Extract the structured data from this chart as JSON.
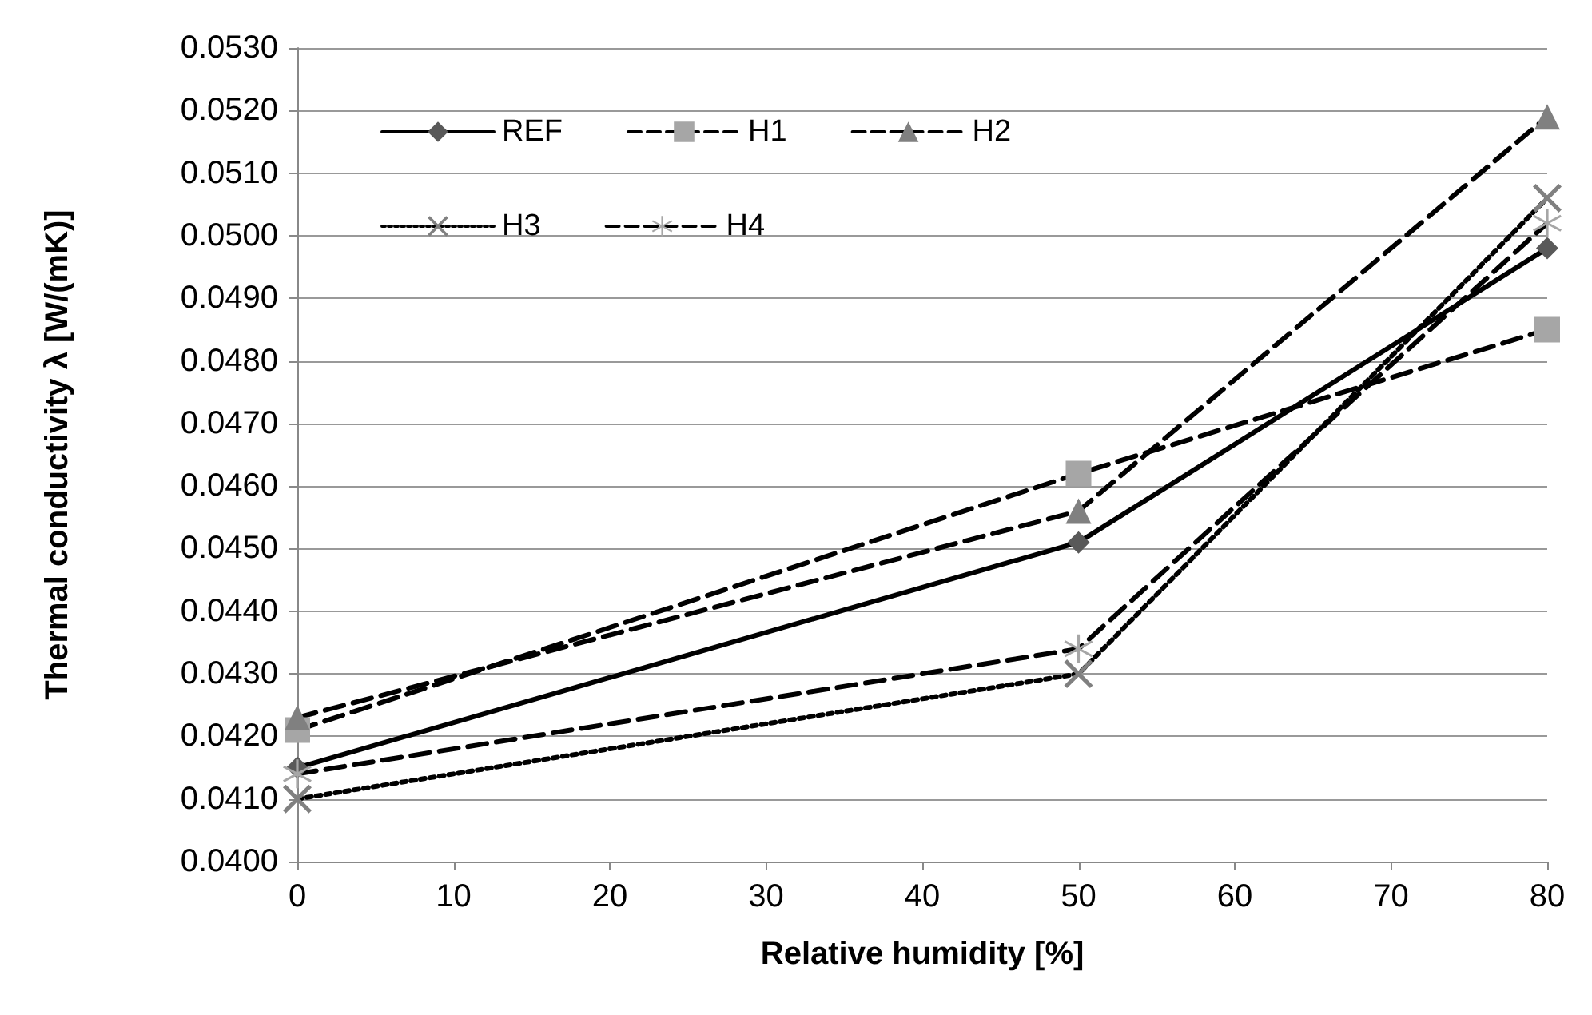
{
  "chart_data": {
    "type": "line",
    "xlabel": "Relative humidity [%]",
    "ylabel": "Thermal conductivity λ [W/(mK)]",
    "x": [
      0,
      50,
      80
    ],
    "series": [
      {
        "name": "REF",
        "color": "#595959",
        "values": [
          0.0415,
          0.0451,
          0.0498
        ],
        "marker": "diamond",
        "line_style": "solid"
      },
      {
        "name": "H1",
        "color": "#a6a6a6",
        "values": [
          0.0421,
          0.0462,
          0.0485
        ],
        "marker": "square",
        "line_style": "dashed"
      },
      {
        "name": "H2",
        "color": "#808080",
        "values": [
          0.0423,
          0.0456,
          0.0519
        ],
        "marker": "triangle",
        "line_style": "dashed"
      },
      {
        "name": "H3",
        "color": "#808080",
        "values": [
          0.041,
          0.043,
          0.0506
        ],
        "marker": "cross",
        "line_style": "dotted"
      },
      {
        "name": "H4",
        "color": "#a6a6a6",
        "values": [
          0.0414,
          0.0434,
          0.0502
        ],
        "marker": "star",
        "line_style": "dashed"
      }
    ],
    "xlim": [
      0,
      80
    ],
    "xticks": [
      0,
      10,
      20,
      30,
      40,
      50,
      60,
      70,
      80
    ],
    "ylim": [
      0.04,
      0.053
    ],
    "yticks": [
      {
        "value": 0.04,
        "label": "0.0400"
      },
      {
        "value": 0.041,
        "label": "0.0410"
      },
      {
        "value": 0.042,
        "label": "0.0420"
      },
      {
        "value": 0.043,
        "label": "0.0430"
      },
      {
        "value": 0.044,
        "label": "0.0440"
      },
      {
        "value": 0.045,
        "label": "0.0450"
      },
      {
        "value": 0.046,
        "label": "0.0460"
      },
      {
        "value": 0.047,
        "label": "0.0470"
      },
      {
        "value": 0.048,
        "label": "0.0480"
      },
      {
        "value": 0.049,
        "label": "0.0490"
      },
      {
        "value": 0.05,
        "label": "0.0500"
      },
      {
        "value": 0.051,
        "label": "0.0510"
      },
      {
        "value": 0.052,
        "label": "0.0520"
      },
      {
        "value": 0.053,
        "label": "0.0530"
      }
    ],
    "grid": "y",
    "legend": "top left"
  }
}
